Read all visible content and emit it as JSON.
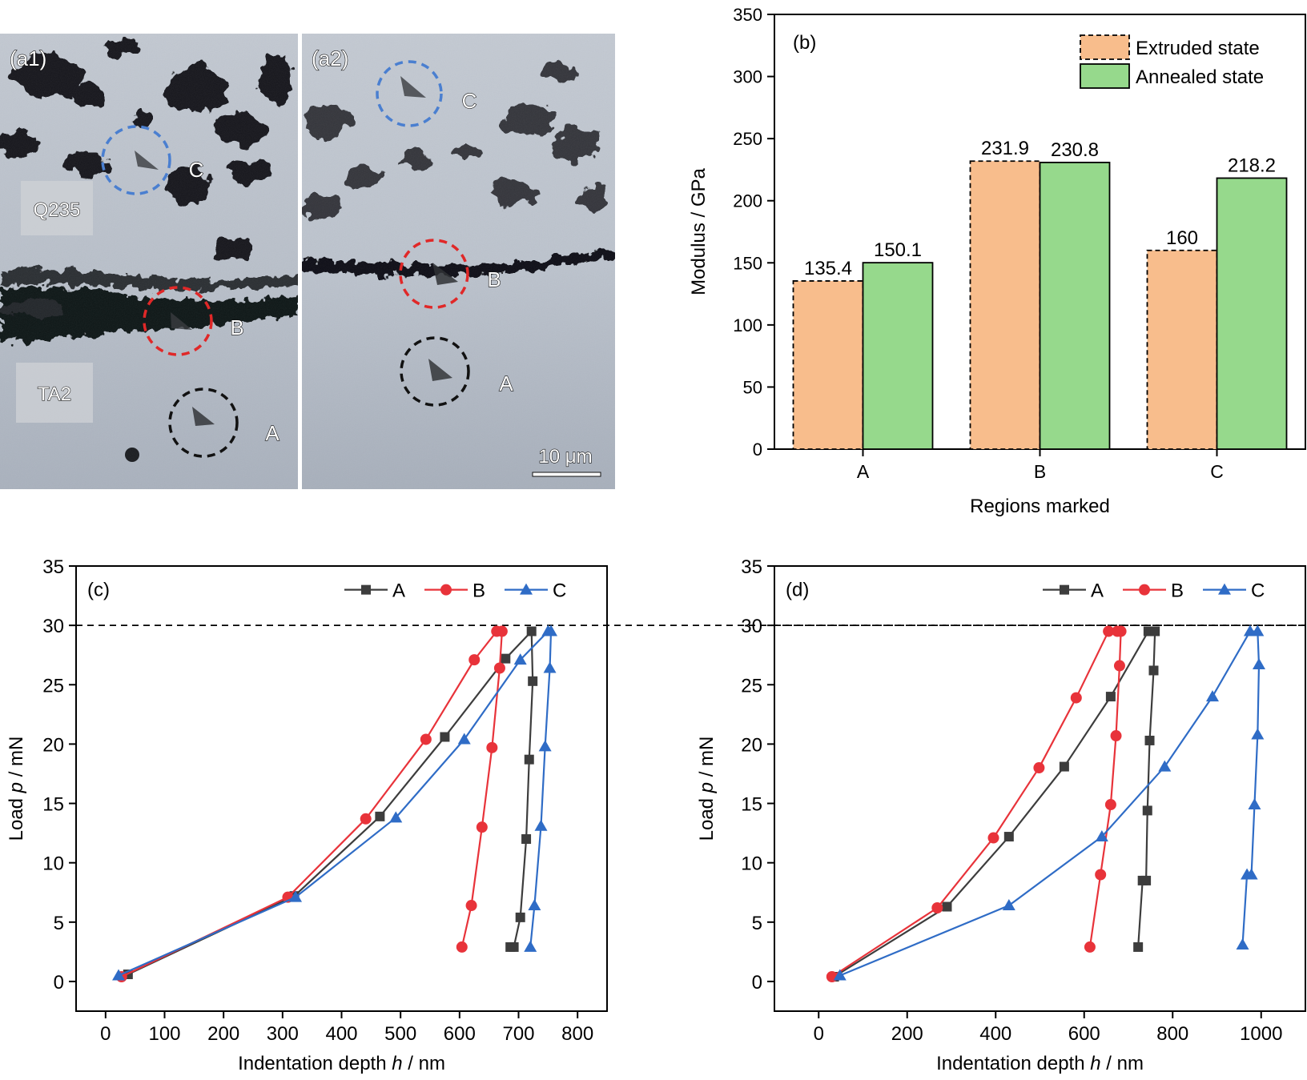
{
  "micrographs": {
    "a1": {
      "label": "(a1)",
      "material_top": "Q235",
      "material_bottom": "TA2",
      "indents": [
        {
          "label": "C",
          "color": "#4a7fd0"
        },
        {
          "label": "B",
          "color": "#e02828"
        },
        {
          "label": "A",
          "color": "#111111"
        }
      ]
    },
    "a2": {
      "label": "(a2)",
      "indents": [
        {
          "label": "C",
          "color": "#4a7fd0"
        },
        {
          "label": "B",
          "color": "#e02828"
        },
        {
          "label": "A",
          "color": "#111111"
        }
      ],
      "scale_bar": "10 μm"
    }
  },
  "chart_data": [
    {
      "panel": "(b)",
      "type": "bar",
      "categories": [
        "A",
        "B",
        "C"
      ],
      "series": [
        {
          "name": "Extruded state",
          "values": [
            135.4,
            231.9,
            160
          ],
          "labels": [
            "135.4",
            "231.9",
            "160"
          ],
          "color": "#f8bd8c",
          "dashed": true
        },
        {
          "name": "Annealed state",
          "values": [
            150.1,
            230.8,
            218.2
          ],
          "labels": [
            "150.1",
            "230.8",
            "218.2"
          ],
          "color": "#96d98c",
          "dashed": false
        }
      ],
      "xlabel": "Regions marked",
      "ylabel": "Modulus / GPa",
      "ylim": [
        0,
        350
      ],
      "yticks": [
        0,
        50,
        100,
        150,
        200,
        250,
        300,
        350
      ],
      "legend": "top-right"
    },
    {
      "panel": "(c)",
      "type": "line",
      "xlabel_parts": [
        "Indentation depth ",
        "h",
        " / nm"
      ],
      "ylabel_parts": [
        "Load ",
        "p",
        " / mN"
      ],
      "xlim": [
        -50,
        850
      ],
      "ylim": [
        -2.5,
        35
      ],
      "xticks": [
        0,
        100,
        200,
        300,
        400,
        500,
        600,
        700,
        800
      ],
      "yticks": [
        0,
        5,
        10,
        15,
        20,
        25,
        30,
        35
      ],
      "reference_line_y": 30,
      "legend": "top-right",
      "series": [
        {
          "name": "A",
          "color": "#3d3d3d",
          "marker": "square",
          "x": [
            38,
            320,
            465,
            575,
            678,
            722,
            724,
            718,
            713,
            703,
            692,
            686
          ],
          "y": [
            0.6,
            7.2,
            13.9,
            20.6,
            27.2,
            29.5,
            25.3,
            18.7,
            12.0,
            5.4,
            2.9,
            2.9
          ]
        },
        {
          "name": "B",
          "color": "#e8333a",
          "marker": "circle",
          "x": [
            27,
            309,
            441,
            543,
            625,
            663,
            672,
            668,
            655,
            638,
            620,
            604
          ],
          "y": [
            0.4,
            7.1,
            13.7,
            20.4,
            27.1,
            29.5,
            29.5,
            26.4,
            19.7,
            13.0,
            6.4,
            2.9
          ]
        },
        {
          "name": "C",
          "color": "#2f6cc6",
          "marker": "triangle",
          "x": [
            22,
            322,
            492,
            608,
            703,
            750,
            755,
            753,
            745,
            738,
            727,
            720
          ],
          "y": [
            0.5,
            7.1,
            13.8,
            20.4,
            27.1,
            29.5,
            29.5,
            26.4,
            19.8,
            13.1,
            6.4,
            2.9
          ]
        }
      ]
    },
    {
      "panel": "(d)",
      "type": "line",
      "xlabel_parts": [
        "Indentation depth ",
        "h",
        " / nm"
      ],
      "ylabel_parts": [
        "Load ",
        "p",
        " / mN"
      ],
      "xlim": [
        -100,
        1100
      ],
      "ylim": [
        -2.5,
        35
      ],
      "xticks": [
        0,
        200,
        400,
        600,
        800,
        1000
      ],
      "yticks": [
        0,
        5,
        10,
        15,
        20,
        25,
        30,
        35
      ],
      "reference_line_y": 30,
      "legend": "top-right",
      "series": [
        {
          "name": "A",
          "color": "#3d3d3d",
          "marker": "square",
          "x": [
            35,
            290,
            430,
            555,
            660,
            745,
            760,
            757,
            748,
            743,
            740,
            732,
            722
          ],
          "y": [
            0.4,
            6.3,
            12.2,
            18.1,
            24.0,
            29.5,
            29.5,
            26.2,
            20.3,
            14.4,
            8.5,
            8.5,
            2.9
          ]
        },
        {
          "name": "B",
          "color": "#e8333a",
          "marker": "circle",
          "x": [
            30,
            268,
            395,
            498,
            582,
            655,
            675,
            683,
            680,
            672,
            660,
            637,
            613
          ],
          "y": [
            0.4,
            6.2,
            12.1,
            18.0,
            23.9,
            29.5,
            29.5,
            29.5,
            26.6,
            20.7,
            14.9,
            9.0,
            2.9
          ]
        },
        {
          "name": "C",
          "color": "#2f6cc6",
          "marker": "triangle",
          "x": [
            48,
            430,
            640,
            782,
            890,
            975,
            992,
            995,
            992,
            985,
            978,
            968,
            958
          ],
          "y": [
            0.5,
            6.4,
            12.2,
            18.1,
            24.0,
            29.5,
            29.5,
            26.7,
            20.8,
            14.9,
            9.0,
            9.0,
            3.1
          ]
        }
      ]
    }
  ]
}
